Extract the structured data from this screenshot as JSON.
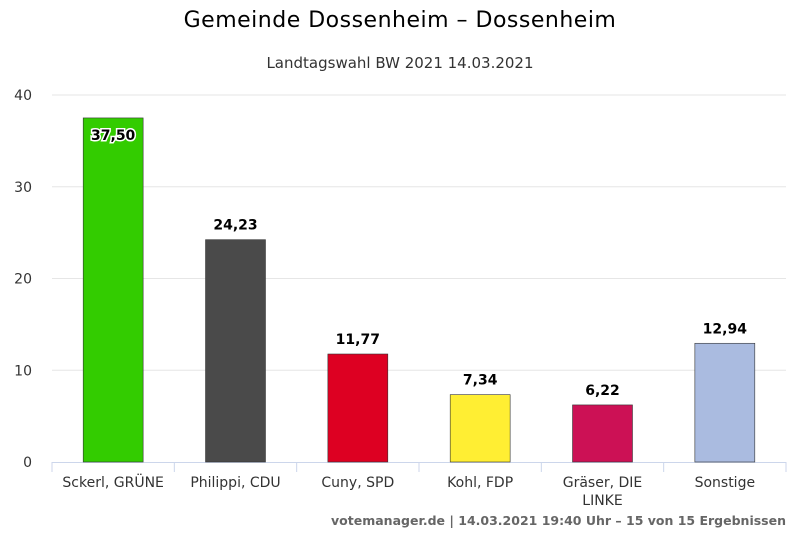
{
  "chart_data": {
    "type": "bar",
    "title": "Gemeinde Dossenheim – Dossenheim",
    "subtitle": "Landtagswahl BW 2021 14.03.2021",
    "categories": [
      "Sckerl, GRÜNE",
      "Philippi, CDU",
      "Cuny, SPD",
      "Kohl, FDP",
      "Gräser, DIE LINKE",
      "Sonstige"
    ],
    "values": [
      37.5,
      24.23,
      11.77,
      7.34,
      6.22,
      12.94
    ],
    "value_labels": [
      "37,50",
      "24,23",
      "11,77",
      "7,34",
      "6,22",
      "12,94"
    ],
    "colors": [
      "#33cc00",
      "#4a4a4a",
      "#dd0022",
      "#ffee33",
      "#cc1155",
      "#aabbe0"
    ],
    "ylim": [
      0,
      40
    ],
    "yticks": [
      0,
      10,
      20,
      30,
      40
    ],
    "grid": true,
    "legend": "none",
    "xlabel": "",
    "ylabel": ""
  },
  "credits": "votemanager.de | 14.03.2021 19:40 Uhr – 15 von 15 Ergebnissen"
}
